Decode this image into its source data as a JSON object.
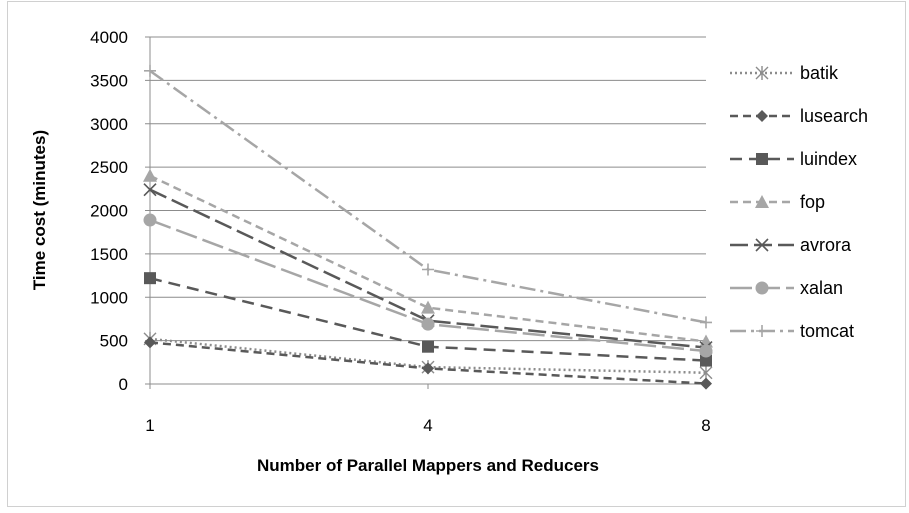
{
  "chart_data": {
    "type": "line",
    "title": "",
    "xlabel": "Number of Parallel Mappers and Reducers",
    "ylabel": "Time cost (minutes)",
    "categories": [
      "1",
      "4",
      "8"
    ],
    "ylim": [
      0,
      4000
    ],
    "yticks": [
      "0",
      "500",
      "1000",
      "1500",
      "2000",
      "2500",
      "3000",
      "3500",
      "4000"
    ],
    "grid": "horizontal",
    "legend_position": "right",
    "series": [
      {
        "name": "batik",
        "values": [
          520,
          195,
          130
        ],
        "color": "#8c8c8c",
        "dash": "2,3",
        "marker": "asterisk"
      },
      {
        "name": "lusearch",
        "values": [
          480,
          180,
          5
        ],
        "color": "#595959",
        "dash": "8,5",
        "marker": "diamond"
      },
      {
        "name": "luindex",
        "values": [
          1220,
          430,
          270
        ],
        "color": "#595959",
        "dash": "12,7",
        "marker": "square"
      },
      {
        "name": "fop",
        "values": [
          2400,
          880,
          490
        ],
        "color": "#a6a6a6",
        "dash": "8,5",
        "marker": "triangle"
      },
      {
        "name": "avrora",
        "values": [
          2240,
          730,
          420
        ],
        "color": "#595959",
        "dash": "18,6",
        "marker": "x"
      },
      {
        "name": "xalan",
        "values": [
          1890,
          690,
          380
        ],
        "color": "#a6a6a6",
        "dash": "22,6",
        "marker": "circle"
      },
      {
        "name": "tomcat",
        "values": [
          3610,
          1320,
          710
        ],
        "color": "#a6a6a6",
        "dash": "16,5,3,5",
        "marker": "plus"
      }
    ]
  }
}
